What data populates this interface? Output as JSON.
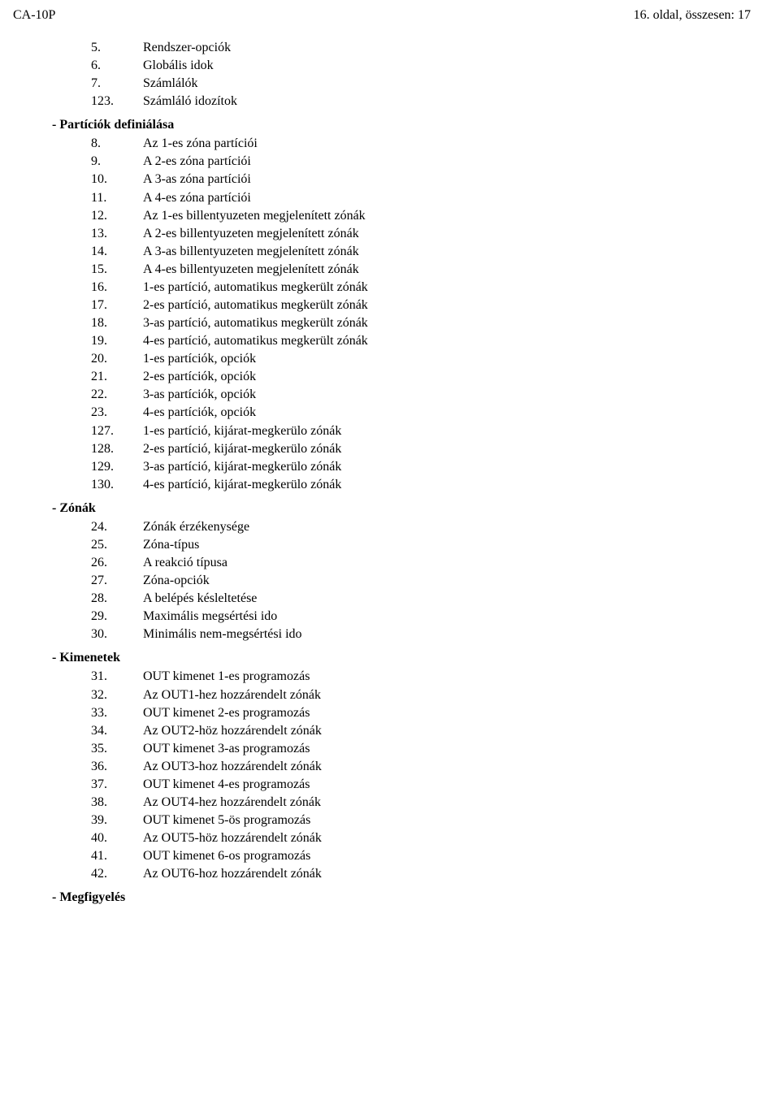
{
  "header": {
    "left": "CA-10P",
    "right": "16. oldal, összesen: 17"
  },
  "section_pre": [
    {
      "n": "5.",
      "t": "Rendszer-opciók"
    },
    {
      "n": "6.",
      "t": "Globális idok"
    },
    {
      "n": "7.",
      "t": "Számlálók"
    },
    {
      "n": "123.",
      "t": "Számláló idozítok"
    }
  ],
  "section_part": {
    "title": " -  Partíciók definiálása",
    "items": [
      {
        "n": "8.",
        "t": "Az 1-es zóna partíciói"
      },
      {
        "n": "9.",
        "t": "A 2-es zóna partíciói"
      },
      {
        "n": "10.",
        "t": "A 3-as zóna partíciói"
      },
      {
        "n": "11.",
        "t": "A 4-es zóna partíciói"
      },
      {
        "n": "12.",
        "t": "Az 1-es billentyuzeten megjelenített zónák"
      },
      {
        "n": "13.",
        "t": "A 2-es billentyuzeten megjelenített zónák"
      },
      {
        "n": "14.",
        "t": "A 3-as billentyuzeten megjelenített zónák"
      },
      {
        "n": "15.",
        "t": "A 4-es billentyuzeten megjelenített zónák"
      },
      {
        "n": "16.",
        "t": "1-es partíció, automatikus megkerült zónák"
      },
      {
        "n": "17.",
        "t": "2-es partíció, automatikus megkerült zónák"
      },
      {
        "n": "18.",
        "t": "3-as partíció, automatikus megkerült zónák"
      },
      {
        "n": "19.",
        "t": "4-es partíció, automatikus megkerült zónák"
      },
      {
        "n": "20.",
        "t": "1-es partíciók, opciók"
      },
      {
        "n": "21.",
        "t": "2-es partíciók, opciók"
      },
      {
        "n": "22.",
        "t": "3-as partíciók, opciók"
      },
      {
        "n": "23.",
        "t": "4-es partíciók, opciók"
      },
      {
        "n": "127.",
        "t": "1-es partíció, kijárat-megkerülo zónák"
      },
      {
        "n": "128.",
        "t": "2-es partíció, kijárat-megkerülo zónák"
      },
      {
        "n": "129.",
        "t": "3-as partíció, kijárat-megkerülo zónák"
      },
      {
        "n": "130.",
        "t": "4-es partíció, kijárat-megkerülo zónák"
      }
    ]
  },
  "section_zonak": {
    "title": " -  Zónák",
    "items": [
      {
        "n": "24.",
        "t": "Zónák érzékenysége"
      },
      {
        "n": "25.",
        "t": "Zóna-típus"
      },
      {
        "n": "26.",
        "t": "A reakció típusa"
      },
      {
        "n": "27.",
        "t": "Zóna-opciók"
      },
      {
        "n": "28.",
        "t": "A belépés késleltetése"
      },
      {
        "n": "29.",
        "t": "Maximális megsértési ido"
      },
      {
        "n": "30.",
        "t": "Minimális nem-megsértési ido"
      }
    ]
  },
  "section_kim": {
    "title": " - Kimenetek",
    "items": [
      {
        "n": "31.",
        "t": "OUT kimenet 1-es programozás"
      },
      {
        "n": "32.",
        "t": "Az OUT1-hez hozzárendelt zónák"
      },
      {
        "n": "33.",
        "t": "OUT kimenet 2-es programozás"
      },
      {
        "n": "34.",
        "t": "Az OUT2-höz hozzárendelt zónák"
      },
      {
        "n": "35.",
        "t": "OUT kimenet 3-as programozás"
      },
      {
        "n": "36.",
        "t": "Az OUT3-hoz hozzárendelt zónák"
      },
      {
        "n": "37.",
        "t": "OUT kimenet 4-es programozás"
      },
      {
        "n": "38.",
        "t": "Az OUT4-hez hozzárendelt zónák"
      },
      {
        "n": "39.",
        "t": "OUT kimenet 5-ös programozás"
      },
      {
        "n": "40.",
        "t": "Az OUT5-höz hozzárendelt zónák"
      },
      {
        "n": "41.",
        "t": "OUT kimenet 6-os programozás"
      },
      {
        "n": "42.",
        "t": "Az OUT6-hoz hozzárendelt zónák"
      }
    ]
  },
  "section_meg": {
    "title": "  - Megfigyelés"
  }
}
